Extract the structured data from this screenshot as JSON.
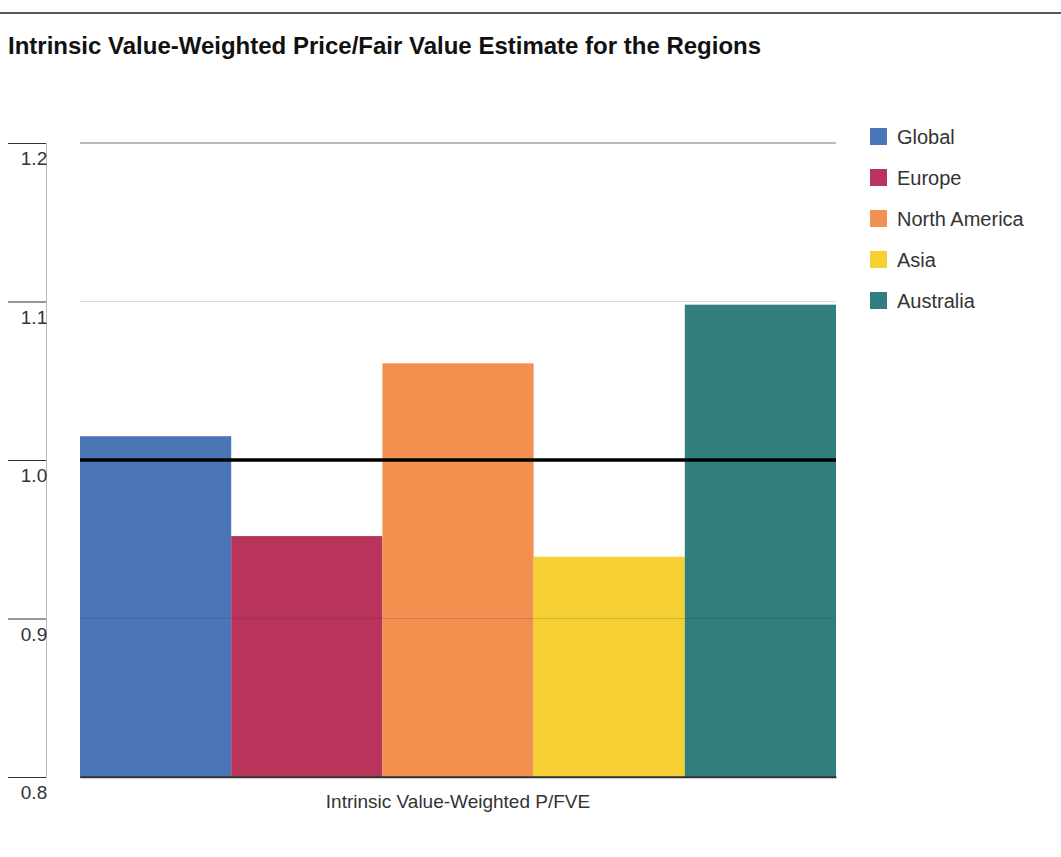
{
  "chart_data": {
    "type": "bar",
    "title": "Intrinsic Value-Weighted Price/Fair Value Estimate for the Regions",
    "categories": [
      "Intrinsic Value-Weighted P/FVE"
    ],
    "series": [
      {
        "name": "Global",
        "color": "#4a76b8",
        "values": [
          1.015
        ]
      },
      {
        "name": "Europe",
        "color": "#b9345a",
        "values": [
          0.952
        ]
      },
      {
        "name": "North America",
        "color": "#f2914f",
        "values": [
          1.061
        ]
      },
      {
        "name": "Asia",
        "color": "#f6cf33",
        "values": [
          0.939
        ]
      },
      {
        "name": "Australia",
        "color": "#327e7e",
        "values": [
          1.098
        ]
      }
    ],
    "reference_line": 1,
    "ylim": [
      0.8,
      1.2
    ],
    "yticks": [
      0.8,
      0.9,
      {
        "value": 1,
        "label": "1.0"
      },
      1.1,
      1.2
    ],
    "grid": true,
    "legend": "right",
    "data_labels": false
  }
}
